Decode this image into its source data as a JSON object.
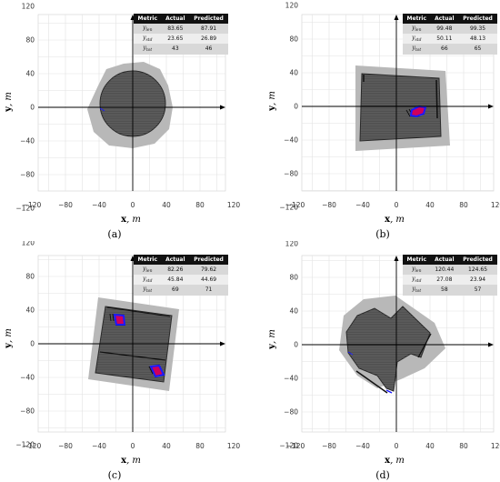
{
  "x_label": "x",
  "y_label": "y",
  "unit": ", m",
  "x_ticks": [
    "−120",
    "−80",
    "−40",
    "0",
    "40",
    "80",
    "120"
  ],
  "y_ticks": [
    "120",
    "80",
    "40",
    "0",
    "−40",
    "−80",
    "−120"
  ],
  "table_headers": [
    "Metric",
    "Actual",
    "Predicted"
  ],
  "panels": [
    {
      "caption": "(a)",
      "rows": [
        {
          "symbol": "y",
          "sub": "len",
          "actual": "83.65",
          "predicted": "87.91"
        },
        {
          "symbol": "y",
          "sub": "std",
          "actual": "23.65",
          "predicted": "26.89"
        },
        {
          "symbol": "y",
          "sub": "tot",
          "actual": "43",
          "predicted": "46"
        }
      ]
    },
    {
      "caption": "(b)",
      "rows": [
        {
          "symbol": "y",
          "sub": "len",
          "actual": "99.48",
          "predicted": "99.35"
        },
        {
          "symbol": "y",
          "sub": "std",
          "actual": "50.11",
          "predicted": "48.13"
        },
        {
          "symbol": "y",
          "sub": "tot",
          "actual": "66",
          "predicted": "65"
        }
      ]
    },
    {
      "caption": "(c)",
      "rows": [
        {
          "symbol": "y",
          "sub": "len",
          "actual": "82.26",
          "predicted": "79.62"
        },
        {
          "symbol": "y",
          "sub": "std",
          "actual": "45.84",
          "predicted": "44.69"
        },
        {
          "symbol": "y",
          "sub": "tot",
          "actual": "69",
          "predicted": "71"
        }
      ]
    },
    {
      "caption": "(d)",
      "rows": [
        {
          "symbol": "y",
          "sub": "len",
          "actual": "120.44",
          "predicted": "124.65"
        },
        {
          "symbol": "y",
          "sub": "std",
          "actual": "27.08",
          "predicted": "23.94"
        },
        {
          "symbol": "y",
          "sub": "tot",
          "actual": "58",
          "predicted": "57"
        }
      ]
    }
  ],
  "colors": {
    "outer_region": "#b8b8b8",
    "field": "#555555",
    "obstacle_fill": "#d0005a",
    "obstacle_edge": "#1a1aff",
    "grid": "#e2e2e2"
  }
}
